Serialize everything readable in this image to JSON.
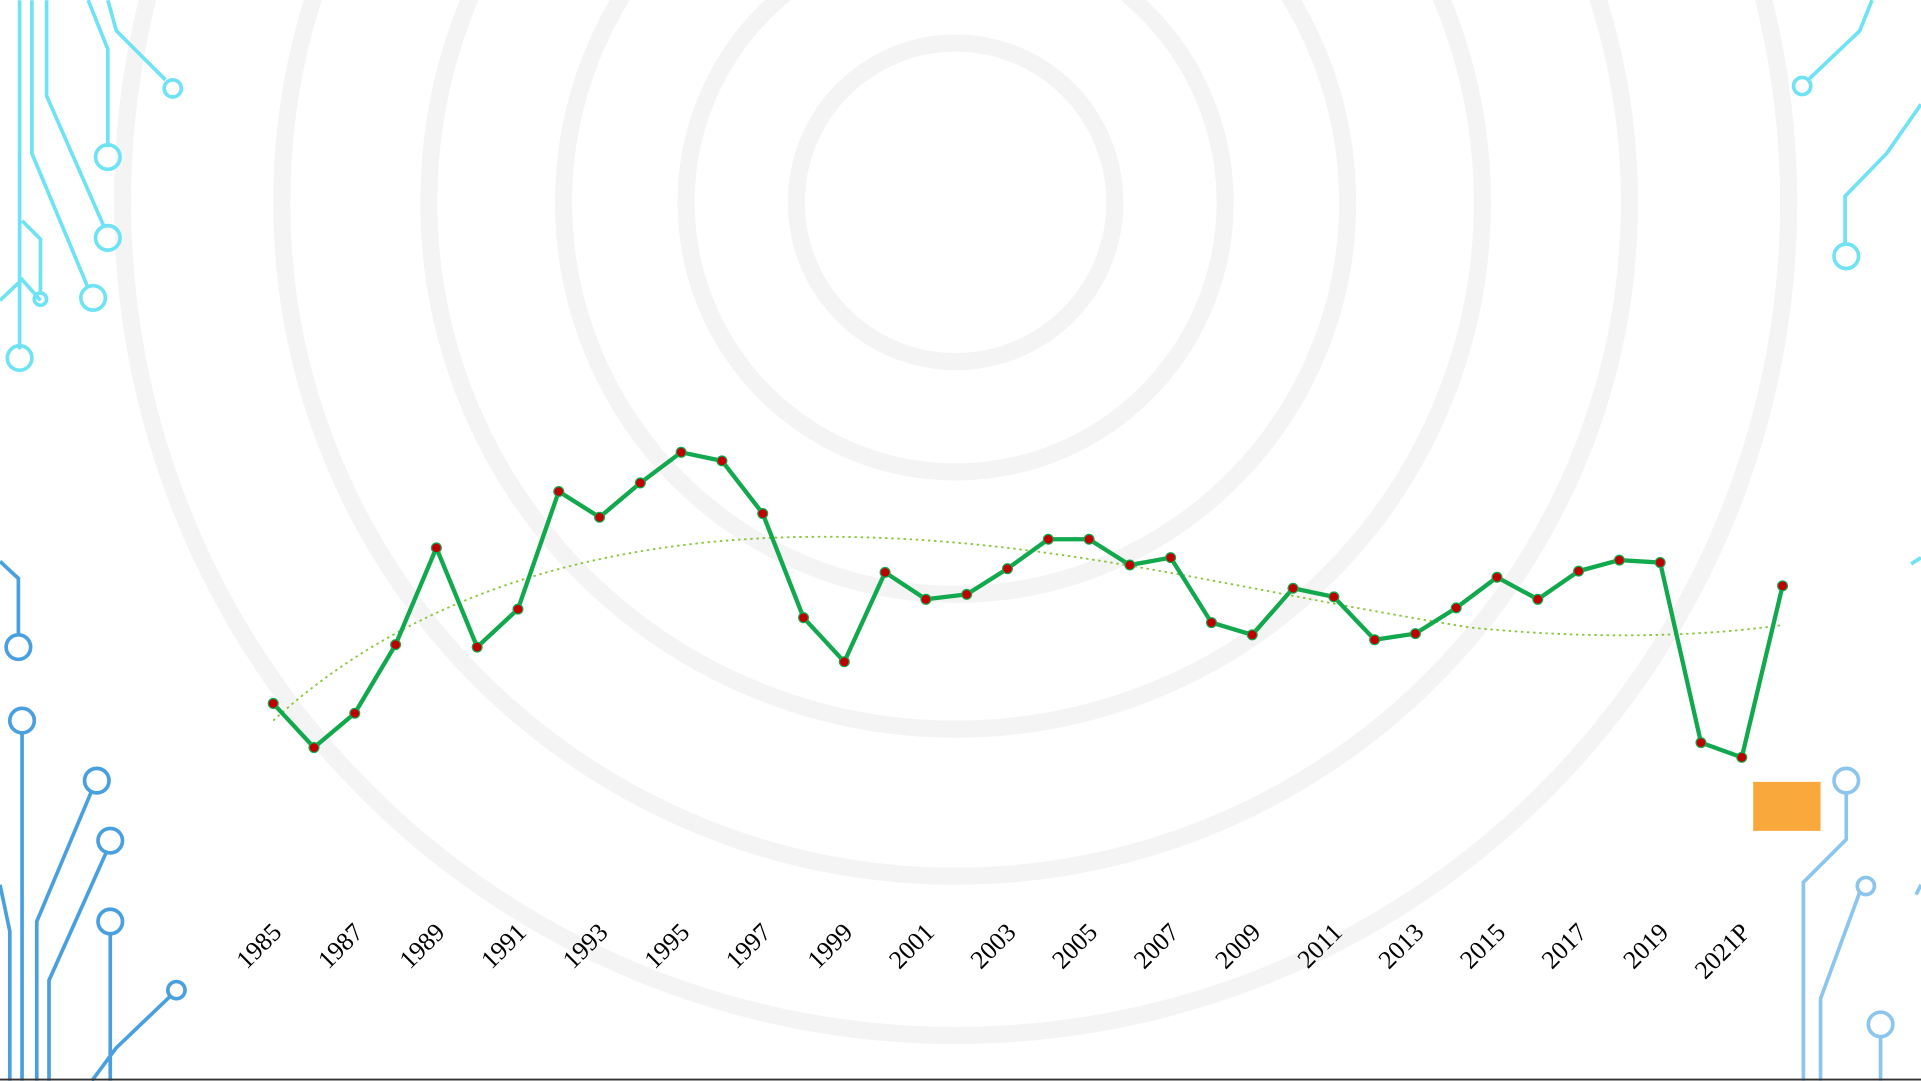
{
  "chart_data": {
    "type": "line",
    "categories": [
      "1985",
      null,
      "1987",
      null,
      "1989",
      null,
      "1991",
      null,
      "1993",
      null,
      "1995",
      null,
      "1997",
      null,
      "1999",
      null,
      "2001",
      null,
      "2003",
      null,
      "2005",
      null,
      "2007",
      null,
      "2009",
      null,
      "2011",
      null,
      "2013",
      null,
      "2015",
      null,
      "2017",
      null,
      "2019",
      null,
      "2021P",
      null
    ],
    "series": [
      {
        "color": "#12a84e",
        "marker_color": "#c00000",
        "values": [
          76,
          40,
          68,
          124,
          203,
          122,
          153,
          249,
          228,
          256,
          281,
          274,
          231,
          146,
          110,
          183,
          161,
          165,
          186,
          210,
          210,
          189,
          195,
          142,
          132,
          170,
          163,
          128,
          133,
          154,
          179,
          161,
          184,
          193,
          191,
          44,
          32,
          172
        ]
      }
    ],
    "ylim": [
      0,
      300
    ]
  }
}
